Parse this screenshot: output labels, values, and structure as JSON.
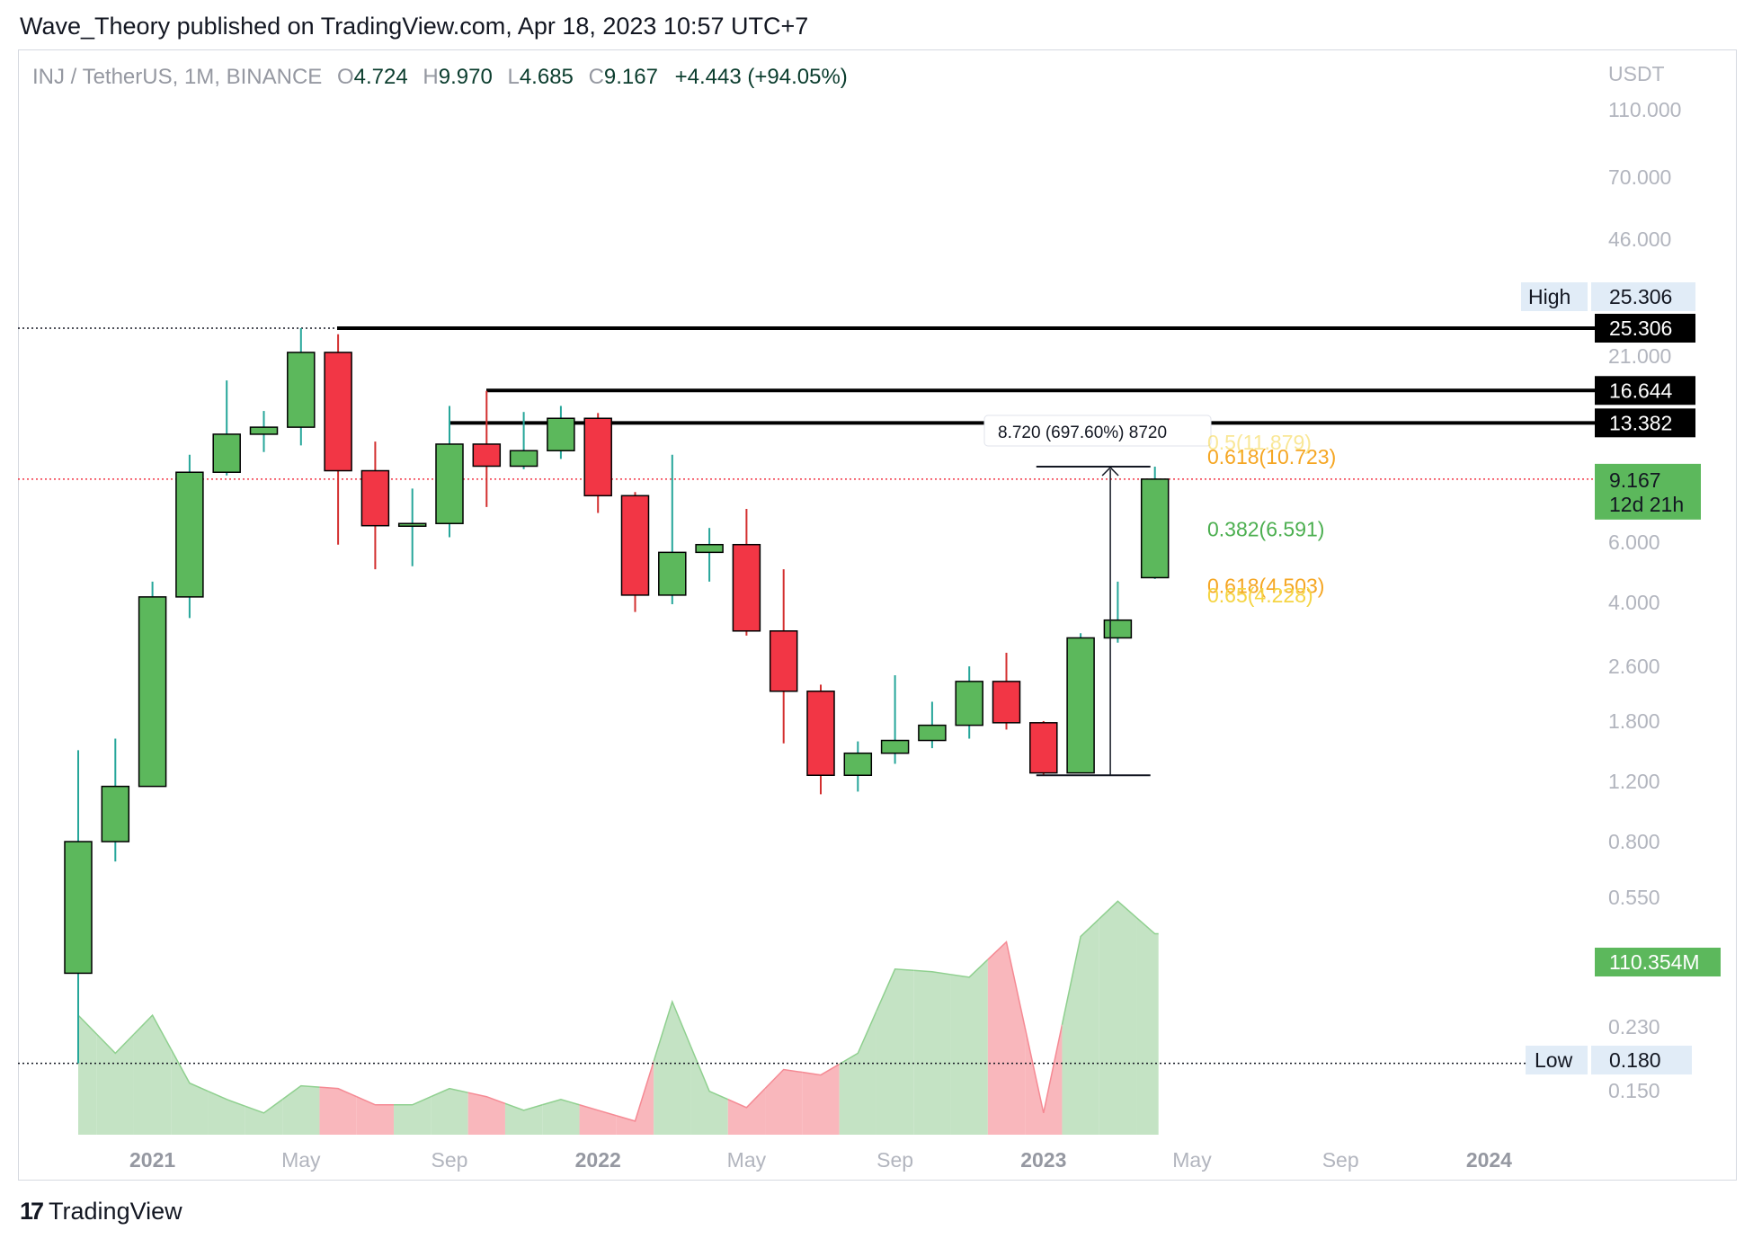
{
  "header": {
    "publisher_line": "Wave_Theory published on TradingView.com, Apr 18, 2023 10:57 UTC+7"
  },
  "legend": {
    "symbol": "INJ / TetherUS, 1M, BINANCE",
    "o_label": "O",
    "o_value": "4.724",
    "h_label": "H",
    "h_value": "9.970",
    "l_label": "L",
    "l_value": "4.685",
    "c_label": "C",
    "c_value": "9.167",
    "change": "+4.443 (+94.05%)"
  },
  "footer": {
    "brand_icon": "tradingview-logo-icon",
    "brand": "TradingView"
  },
  "colors": {
    "up": "#5cb85c",
    "down": "#f23645",
    "vol_up": "#c4e3c4",
    "vol_down": "#f9b7bc",
    "axis_text": "#b2b5be",
    "fib_orange": "#f5a623",
    "fib_green": "#4caf50",
    "fib_yellow": "#f5d442"
  },
  "chart_data": {
    "type": "candlestick",
    "scale": "log",
    "y_axis_unit": "USDT",
    "y_ticks": [
      "110.000",
      "70.000",
      "46.000",
      "21.000",
      "6.000",
      "4.000",
      "2.600",
      "1.800",
      "1.200",
      "0.800",
      "0.550",
      "0.230",
      "0.150"
    ],
    "x_ticks": [
      "2021",
      "May",
      "Sep",
      "2022",
      "May",
      "Sep",
      "2023",
      "May",
      "Sep",
      "2024"
    ],
    "candles": [
      {
        "date": "2020-11",
        "o": 0.33,
        "h": 1.48,
        "l": 0.18,
        "c": 0.8
      },
      {
        "date": "2020-12",
        "o": 0.8,
        "h": 1.6,
        "l": 0.7,
        "c": 1.16
      },
      {
        "date": "2021-01",
        "o": 1.16,
        "h": 4.6,
        "l": 1.16,
        "c": 4.15
      },
      {
        "date": "2021-02",
        "o": 4.15,
        "h": 10.8,
        "l": 3.6,
        "c": 9.6
      },
      {
        "date": "2021-03",
        "o": 9.6,
        "h": 17.8,
        "l": 9.4,
        "c": 12.4
      },
      {
        "date": "2021-04",
        "o": 12.4,
        "h": 14.5,
        "l": 11.0,
        "c": 13.0
      },
      {
        "date": "2021-05",
        "o": 13.0,
        "h": 25.3,
        "l": 11.5,
        "c": 21.5
      },
      {
        "date": "2021-06",
        "o": 21.5,
        "h": 24.3,
        "l": 5.9,
        "c": 9.7
      },
      {
        "date": "2021-07",
        "o": 9.7,
        "h": 11.8,
        "l": 5.0,
        "c": 6.7
      },
      {
        "date": "2021-08",
        "o": 6.7,
        "h": 8.6,
        "l": 5.1,
        "c": 6.8
      },
      {
        "date": "2021-09",
        "o": 6.8,
        "h": 15.0,
        "l": 6.2,
        "c": 11.6
      },
      {
        "date": "2021-10",
        "o": 11.6,
        "h": 16.6,
        "l": 7.6,
        "c": 10.0
      },
      {
        "date": "2021-11",
        "o": 10.0,
        "h": 14.4,
        "l": 9.8,
        "c": 11.1
      },
      {
        "date": "2021-12",
        "o": 11.1,
        "h": 15.0,
        "l": 10.5,
        "c": 13.8
      },
      {
        "date": "2022-01",
        "o": 13.8,
        "h": 14.3,
        "l": 7.3,
        "c": 8.2
      },
      {
        "date": "2022-02",
        "o": 8.2,
        "h": 8.4,
        "l": 3.75,
        "c": 4.2
      },
      {
        "date": "2022-03",
        "o": 4.2,
        "h": 10.8,
        "l": 3.95,
        "c": 5.6
      },
      {
        "date": "2022-04",
        "o": 5.6,
        "h": 6.6,
        "l": 4.6,
        "c": 5.9
      },
      {
        "date": "2022-05",
        "o": 5.9,
        "h": 7.5,
        "l": 3.2,
        "c": 3.3
      },
      {
        "date": "2022-06",
        "o": 3.3,
        "h": 5.0,
        "l": 1.55,
        "c": 2.2
      },
      {
        "date": "2022-07",
        "o": 2.2,
        "h": 2.3,
        "l": 1.1,
        "c": 1.25
      },
      {
        "date": "2022-08",
        "o": 1.25,
        "h": 1.57,
        "l": 1.12,
        "c": 1.45
      },
      {
        "date": "2022-09",
        "o": 1.45,
        "h": 2.45,
        "l": 1.35,
        "c": 1.58
      },
      {
        "date": "2022-10",
        "o": 1.58,
        "h": 2.05,
        "l": 1.5,
        "c": 1.75
      },
      {
        "date": "2022-11",
        "o": 1.75,
        "h": 2.6,
        "l": 1.6,
        "c": 2.35
      },
      {
        "date": "2022-12",
        "o": 2.35,
        "h": 2.85,
        "l": 1.7,
        "c": 1.78
      },
      {
        "date": "2023-01",
        "o": 1.78,
        "h": 1.8,
        "l": 1.25,
        "c": 1.27
      },
      {
        "date": "2023-02",
        "o": 1.27,
        "h": 3.25,
        "l": 1.27,
        "c": 3.15
      },
      {
        "date": "2023-03",
        "o": 3.15,
        "h": 4.6,
        "l": 3.05,
        "c": 3.55
      },
      {
        "date": "2023-04",
        "o": 4.724,
        "h": 9.97,
        "l": 4.685,
        "c": 9.167
      }
    ],
    "volume_relative": [
      0.44,
      0.3,
      0.44,
      0.19,
      0.13,
      0.08,
      0.18,
      0.17,
      0.11,
      0.11,
      0.17,
      0.14,
      0.09,
      0.13,
      0.09,
      0.05,
      0.49,
      0.16,
      0.1,
      0.24,
      0.22,
      0.3,
      0.61,
      0.6,
      0.58,
      0.71,
      0.08,
      0.73,
      0.86,
      0.74
    ],
    "volume_last_label": "110.354M",
    "horizontal_levels": [
      {
        "price": 25.306,
        "label": "25.306"
      },
      {
        "price": 16.644,
        "label": "16.644"
      },
      {
        "price": 13.382,
        "label": "13.382"
      }
    ],
    "current_price": {
      "value": "9.167",
      "countdown": "12d 21h"
    },
    "high_marker": {
      "label": "High",
      "value": "25.306"
    },
    "low_marker": {
      "label": "Low",
      "value": "0.180"
    },
    "fib_labels": [
      {
        "price": 10.723,
        "text": "0.618(10.723)",
        "color": "orange"
      },
      {
        "price": 11.8,
        "text": "0.5(11.879)",
        "color": "yellow_faded"
      },
      {
        "price": 6.591,
        "text": "0.382(6.591)",
        "color": "green"
      },
      {
        "price": 4.503,
        "text": "0.618(4.503)",
        "color": "orange"
      },
      {
        "price": 4.228,
        "text": "0.65(4.228)",
        "color": "yellow"
      }
    ],
    "measure": {
      "text": "8.720 (697.60%) 8720",
      "from_price": 1.25,
      "to_price": 9.97
    }
  }
}
